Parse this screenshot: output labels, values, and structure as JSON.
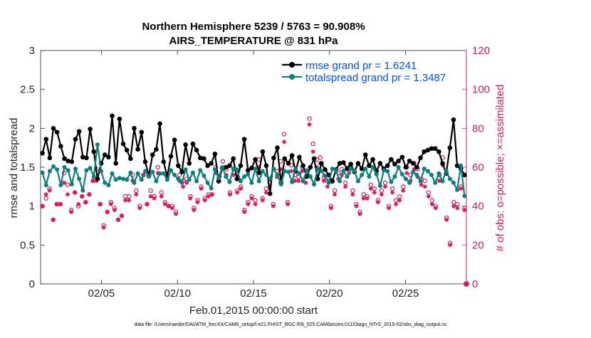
{
  "chart_data": {
    "type": "line",
    "title_line1": "Northern Hemisphere 5239 / 5763 = 90.908%",
    "title_line2": "AIRS_TEMPERATURE @ 831 hPa",
    "xlabel": "Feb.01,2015 00:00:00 start",
    "ylabel_left": "rmse and totalspread",
    "ylabel_right": "# of obs: o=possible; ×=assimilated",
    "footer": "data file: /Users/raeder/DAI/ATM_forcXX/CAM6_setup/f.e21.FHIST_BGC.f09_025.CAM6assim.011/Diags_NTrS_2015-02/obs_diag_output.nc",
    "x_range_days": [
      1,
      29
    ],
    "x_ticks": [
      {
        "day": 5,
        "label": "02/05"
      },
      {
        "day": 10,
        "label": "02/10"
      },
      {
        "day": 15,
        "label": "02/15"
      },
      {
        "day": 20,
        "label": "02/20"
      },
      {
        "day": 25,
        "label": "02/25"
      }
    ],
    "ylim_left": [
      0,
      3
    ],
    "yticks_left": [
      "0",
      "0.5",
      "1",
      "1.5",
      "2",
      "2.5",
      "3"
    ],
    "ylim_right": [
      0,
      120
    ],
    "yticks_right": [
      "0",
      "20",
      "40",
      "60",
      "80",
      "100",
      "120"
    ],
    "series": [
      {
        "name": "rmse grand pr = 1.6241",
        "color": "#000000",
        "values": [
          1.68,
          1.86,
          1.62,
          2.0,
          1.95,
          1.77,
          1.61,
          1.58,
          1.57,
          1.86,
          1.96,
          1.63,
          1.62,
          1.99,
          1.7,
          1.35,
          1.55,
          1.66,
          1.63,
          2.16,
          1.55,
          2.12,
          1.8,
          1.72,
          1.61,
          2.0,
          1.73,
          1.95,
          1.57,
          1.39,
          1.66,
          1.73,
          2.06,
          1.57,
          1.38,
          1.64,
          1.85,
          1.52,
          1.44,
          1.79,
          1.55,
          1.8,
          1.72,
          1.62,
          1.61,
          1.52,
          1.55,
          1.67,
          1.32,
          1.49,
          1.5,
          1.52,
          1.61,
          1.35,
          1.52,
          1.86,
          1.46,
          1.49,
          1.6,
          1.43,
          1.7,
          1.52,
          1.16,
          1.62,
          1.75,
          1.3,
          1.61,
          1.55,
          1.65,
          1.45,
          1.63,
          1.52,
          1.38,
          1.5,
          1.61,
          1.35,
          1.55,
          1.47,
          1.4,
          1.32,
          1.47,
          1.55,
          1.56,
          1.48,
          1.54,
          1.44,
          1.55,
          1.48,
          1.66,
          1.52,
          1.6,
          1.45,
          1.55,
          1.48,
          1.52,
          1.6,
          1.54,
          1.58,
          1.63,
          1.5,
          1.58,
          1.55,
          1.5,
          1.62,
          1.7,
          1.72,
          1.74,
          1.74,
          1.7,
          1.55,
          1.42,
          1.75,
          2.11,
          1.52,
          1.48,
          1.4
        ]
      },
      {
        "name": "totalspread grand pr = 1.3487",
        "color": "#0b7f7c",
        "values": [
          1.43,
          1.27,
          1.45,
          1.51,
          1.47,
          1.27,
          1.5,
          1.46,
          1.28,
          1.48,
          1.35,
          1.2,
          1.46,
          1.49,
          1.38,
          1.79,
          1.45,
          1.3,
          1.27,
          1.42,
          1.34,
          1.36,
          1.35,
          1.34,
          1.43,
          1.3,
          1.42,
          1.34,
          1.45,
          1.38,
          1.44,
          1.32,
          1.42,
          1.42,
          1.34,
          1.46,
          1.4,
          1.35,
          1.3,
          1.47,
          1.34,
          1.43,
          1.32,
          1.46,
          1.39,
          1.3,
          1.23,
          1.47,
          1.36,
          1.5,
          1.38,
          1.31,
          1.48,
          1.47,
          1.32,
          1.38,
          1.41,
          1.3,
          1.48,
          1.32,
          1.45,
          1.4,
          1.35,
          1.48,
          1.4,
          1.28,
          1.45,
          1.44,
          1.31,
          1.48,
          1.42,
          1.32,
          1.46,
          1.38,
          1.28,
          1.48,
          1.45,
          1.39,
          1.3,
          1.48,
          1.46,
          1.32,
          1.45,
          1.38,
          1.48,
          1.45,
          1.32,
          1.4,
          1.48,
          1.38,
          1.5,
          1.41,
          1.26,
          1.46,
          1.45,
          1.31,
          1.38,
          1.5,
          1.41,
          1.35,
          1.3,
          1.44,
          1.4,
          1.32,
          1.48,
          1.45,
          1.4,
          1.3,
          1.42,
          1.32,
          1.45,
          1.35,
          1.3,
          1.21,
          1.52,
          1.13
        ]
      }
    ],
    "obs_possible": {
      "name": "possible",
      "color": "#d81b60",
      "marker": "circle",
      "values": [
        40,
        44,
        49,
        33,
        41,
        41,
        57,
        51,
        38,
        47,
        40,
        45,
        42,
        46,
        53,
        59,
        41,
        30,
        37,
        42,
        39,
        33,
        35,
        45,
        45,
        56,
        48,
        40,
        56,
        41,
        48,
        45,
        60,
        47,
        42,
        40,
        40,
        37,
        56,
        53,
        54,
        45,
        39,
        43,
        50,
        44,
        46,
        46,
        60,
        55,
        63,
        59,
        47,
        59,
        48,
        50,
        38,
        42,
        45,
        43,
        64,
        44,
        49,
        52,
        41,
        58,
        63,
        77,
        42,
        61,
        56,
        55,
        60,
        55,
        85,
        72,
        64,
        65,
        55,
        53,
        40,
        48,
        57,
        59,
        52,
        60,
        48,
        41,
        37,
        46,
        45,
        51,
        49,
        43,
        48,
        52,
        40,
        49,
        43,
        45,
        50,
        60,
        56,
        62,
        59,
        54,
        53,
        47,
        43,
        40,
        56,
        65,
        34,
        21,
        42,
        41,
        50,
        39
      ]
    },
    "obs_assimilated": {
      "name": "assimilated",
      "color": "#d81b60",
      "marker": "asterisk",
      "values": [
        40,
        46,
        48,
        33,
        41,
        41,
        52,
        46,
        37,
        47,
        41,
        45,
        42,
        46,
        53,
        53,
        41,
        29,
        37,
        41,
        38,
        33,
        35,
        43,
        43,
        53,
        46,
        39,
        56,
        41,
        45,
        44,
        57,
        45,
        41,
        40,
        39,
        36,
        53,
        50,
        52,
        44,
        38,
        42,
        49,
        43,
        45,
        46,
        57,
        53,
        60,
        56,
        46,
        56,
        47,
        49,
        37,
        41,
        44,
        41,
        60,
        43,
        47,
        50,
        40,
        55,
        59,
        73,
        41,
        58,
        53,
        53,
        58,
        52,
        82,
        68,
        60,
        62,
        53,
        50,
        39,
        46,
        54,
        56,
        50,
        57,
        46,
        40,
        36,
        44,
        44,
        49,
        47,
        42,
        46,
        50,
        39,
        47,
        41,
        43,
        48,
        57,
        53,
        59,
        55,
        51,
        50,
        45,
        41,
        39,
        53,
        61,
        33,
        20,
        40,
        39,
        49,
        38
      ]
    },
    "zero_point_day": 29.0
  }
}
